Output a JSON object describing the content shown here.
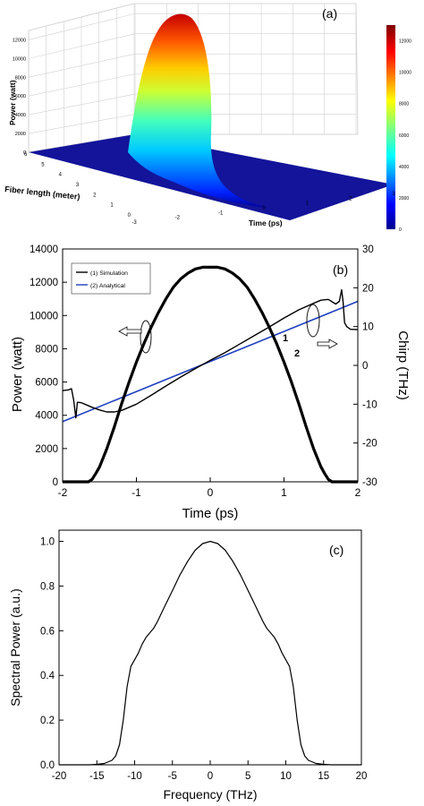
{
  "chart_data": [
    {
      "panel": "(a)",
      "type": "surface3d",
      "zlabel": "Power (watt)",
      "ylabel": "Fiber length (meter)",
      "xlabel": "Time (ps)",
      "x_ticks": [
        "-3",
        "-2",
        "-1",
        "0",
        "1",
        "2",
        "3"
      ],
      "y_ticks": [
        "0",
        "1",
        "2",
        "3",
        "4",
        "5",
        "6"
      ],
      "z_ticks": [
        "0",
        "2000",
        "4000",
        "6000",
        "8000",
        "10000",
        "12000"
      ],
      "x_range": [
        -3,
        3
      ],
      "y_range": [
        0,
        6
      ],
      "z_range": [
        0,
        13000
      ],
      "peak_power": 12900,
      "pulse_width_ps": 1.6,
      "colorbar_ticks": [
        "0",
        "2000",
        "4000",
        "6000",
        "8000",
        "10000",
        "12000"
      ],
      "colorbar_range": [
        0,
        13000
      ]
    },
    {
      "panel": "(b)",
      "type": "line",
      "xlabel": "Time (ps)",
      "ylabel": "Power (watt)",
      "y2label": "Chirp (THz)",
      "xlim": [
        -2,
        2
      ],
      "ylim": [
        0,
        14000
      ],
      "y2lim": [
        -30,
        30
      ],
      "x_ticks": [
        "-2",
        "-1",
        "0",
        "1",
        "2"
      ],
      "y_ticks": [
        "0",
        "2000",
        "4000",
        "6000",
        "8000",
        "10000",
        "12000",
        "14000"
      ],
      "y2_ticks": [
        "-30",
        "-20",
        "-10",
        "0",
        "10",
        "20",
        "30"
      ],
      "legend": [
        "(1) Simulation",
        "(2) Analytical"
      ],
      "curve_labels": [
        "1",
        "2"
      ],
      "power_series": {
        "x": [
          -2.0,
          -1.65,
          -1.6,
          -1.55,
          -1.5,
          -1.4,
          -1.3,
          -1.2,
          -1.1,
          -1.0,
          -0.9,
          -0.8,
          -0.7,
          -0.6,
          -0.5,
          -0.4,
          -0.3,
          -0.2,
          -0.1,
          0.0,
          0.1,
          0.2,
          0.3,
          0.4,
          0.5,
          0.6,
          0.7,
          0.8,
          0.9,
          1.0,
          1.1,
          1.2,
          1.3,
          1.4,
          1.5,
          1.55,
          1.6,
          1.65,
          2.0
        ],
        "y": [
          0,
          0,
          150,
          500,
          900,
          2000,
          3300,
          4700,
          6000,
          7200,
          8300,
          9300,
          10200,
          11000,
          11700,
          12200,
          12550,
          12800,
          12900,
          12900,
          12900,
          12800,
          12550,
          12200,
          11700,
          11000,
          10200,
          9300,
          8300,
          7200,
          6000,
          4700,
          3300,
          2000,
          900,
          500,
          150,
          0,
          0
        ]
      },
      "chirp_simulation": {
        "x": [
          -2.0,
          -1.92,
          -1.88,
          -1.85,
          -1.82,
          -1.8,
          -1.75,
          -1.7,
          -1.6,
          -1.5,
          -1.4,
          -1.3,
          -1.2,
          -1.0,
          -0.8,
          -0.6,
          -0.4,
          -0.2,
          0.0,
          0.2,
          0.4,
          0.6,
          0.8,
          1.0,
          1.2,
          1.4,
          1.5,
          1.6,
          1.7,
          1.75,
          1.78,
          1.8,
          1.82,
          1.85,
          1.9,
          2.0
        ],
        "y": [
          -6.5,
          -6.3,
          -6.0,
          -9.0,
          -13.5,
          -9.5,
          -9.6,
          -10.0,
          -10.8,
          -11.5,
          -12.0,
          -12.0,
          -11.6,
          -10.0,
          -7.7,
          -5.3,
          -3.0,
          -0.8,
          1.3,
          3.3,
          5.5,
          7.7,
          9.9,
          12.2,
          14.3,
          16.0,
          16.8,
          17.0,
          15.8,
          16.5,
          19.5,
          16.5,
          11.0,
          10.0,
          9.3,
          9.2
        ]
      },
      "chirp_analytical": {
        "x": [
          -2.0,
          2.0
        ],
        "y": [
          -14.5,
          16.5
        ]
      }
    },
    {
      "panel": "(c)",
      "type": "line",
      "xlabel": "Frequency (THz)",
      "ylabel": "Spectral Power (a.u.)",
      "xlim": [
        -20,
        20
      ],
      "ylim": [
        0,
        1.05
      ],
      "x_ticks": [
        "-20",
        "-15",
        "-10",
        "-5",
        "0",
        "5",
        "10",
        "15",
        "20"
      ],
      "y_ticks": [
        "0.0",
        "0.2",
        "0.4",
        "0.6",
        "0.8",
        "1.0"
      ],
      "series": {
        "x": [
          -20,
          -16,
          -15,
          -14,
          -13,
          -12.5,
          -12,
          -11.5,
          -11,
          -10.5,
          -10,
          -9.5,
          -9,
          -8.5,
          -8,
          -7.5,
          -7,
          -6,
          -5,
          -4,
          -3,
          -2,
          -1,
          0,
          1,
          2,
          3,
          4,
          5,
          6,
          7,
          7.5,
          8,
          8.5,
          9,
          9.5,
          10,
          10.5,
          11,
          11.5,
          12,
          12.5,
          13,
          14,
          15,
          16,
          20
        ],
        "y": [
          0,
          0,
          0.002,
          0.006,
          0.02,
          0.04,
          0.09,
          0.2,
          0.35,
          0.44,
          0.47,
          0.5,
          0.54,
          0.57,
          0.59,
          0.61,
          0.64,
          0.71,
          0.78,
          0.85,
          0.91,
          0.96,
          0.99,
          1.0,
          0.99,
          0.96,
          0.91,
          0.85,
          0.78,
          0.71,
          0.64,
          0.61,
          0.59,
          0.57,
          0.54,
          0.5,
          0.47,
          0.44,
          0.35,
          0.2,
          0.09,
          0.04,
          0.02,
          0.006,
          0.002,
          0,
          0
        ]
      }
    }
  ],
  "colors": {
    "simulation": "#000000",
    "analytical": "#1f3fbf"
  }
}
